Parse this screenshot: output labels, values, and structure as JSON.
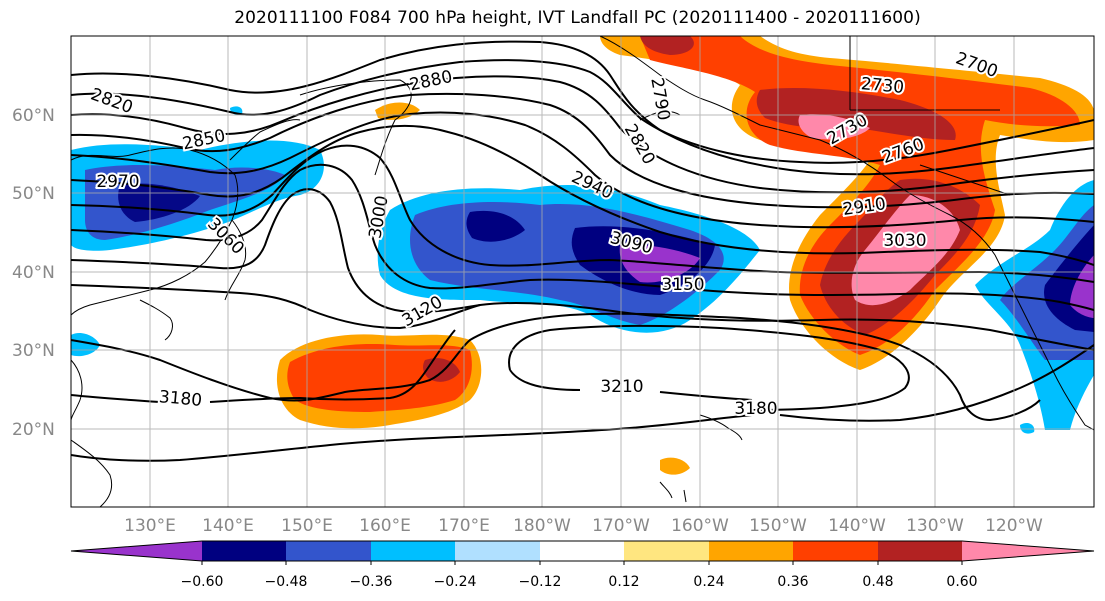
{
  "title": "2020111100 F084 700 hPa height, IVT Landfall PC (2020111400 - 2020111600)",
  "lat_labels": [
    "60°N",
    "50°N",
    "40°N",
    "30°N",
    "20°N"
  ],
  "lon_labels": [
    "130°E",
    "140°E",
    "150°E",
    "160°E",
    "170°E",
    "180°W",
    "170°W",
    "160°W",
    "150°W",
    "140°W",
    "130°W",
    "120°W"
  ],
  "colorbar": {
    "ticks": [
      "−0.60",
      "−0.48",
      "−0.36",
      "−0.24",
      "−0.12",
      "0.12",
      "0.24",
      "0.36",
      "0.48",
      "0.60"
    ],
    "colors": [
      "#9933cc",
      "#000080",
      "#3355cc",
      "#00bfff",
      "#b0e0ff",
      "#ffffff",
      "#ffe680",
      "#ffa500",
      "#ff4000",
      "#b22222",
      "#ff88aa"
    ]
  },
  "contour_labels": [
    {
      "text": "2820"
    },
    {
      "text": "2850"
    },
    {
      "text": "2880"
    },
    {
      "text": "2970"
    },
    {
      "text": "3060"
    },
    {
      "text": "3000"
    },
    {
      "text": "2940"
    },
    {
      "text": "3090"
    },
    {
      "text": "3150"
    },
    {
      "text": "3120"
    },
    {
      "text": "3180"
    },
    {
      "text": "3210"
    },
    {
      "text": "3180"
    },
    {
      "text": "2820"
    },
    {
      "text": "2790"
    },
    {
      "text": "2730"
    },
    {
      "text": "2700"
    },
    {
      "text": "2730"
    },
    {
      "text": "2760"
    },
    {
      "text": "2910"
    },
    {
      "text": "3030"
    }
  ]
}
